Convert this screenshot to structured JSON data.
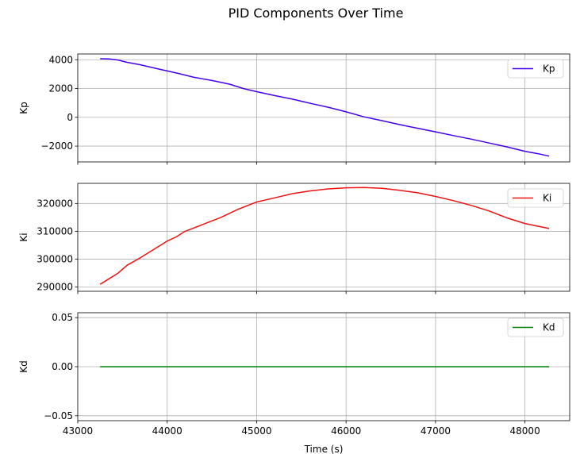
{
  "figure": {
    "title": "PID Components Over Time"
  },
  "chart_data": [
    {
      "type": "line",
      "xlabel": "",
      "ylabel": "Kp",
      "xlim": [
        43000,
        48500
      ],
      "ylim": [
        -3100,
        4400
      ],
      "yticks": [
        -2000,
        0,
        2000,
        4000
      ],
      "ytick_labels": [
        "−2000",
        "0",
        "2000",
        "4000"
      ],
      "xticks": [
        43000,
        44000,
        45000,
        46000,
        47000,
        48000
      ],
      "xtick_labels": [],
      "grid": true,
      "legend": "upper right",
      "series": [
        {
          "name": "Kp",
          "color": "#4400ee",
          "x": [
            43250,
            43350,
            43450,
            43550,
            43700,
            43900,
            44100,
            44300,
            44500,
            44700,
            44850,
            45000,
            45200,
            45400,
            45600,
            45800,
            46000,
            46200,
            46400,
            46600,
            46800,
            47000,
            47200,
            47400,
            47600,
            47800,
            48000,
            48150,
            48270
          ],
          "y": [
            4070,
            4060,
            3980,
            3820,
            3650,
            3360,
            3080,
            2780,
            2560,
            2300,
            2000,
            1780,
            1510,
            1260,
            970,
            700,
            380,
            30,
            -230,
            -510,
            -760,
            -1010,
            -1270,
            -1520,
            -1790,
            -2060,
            -2360,
            -2530,
            -2700
          ]
        }
      ]
    },
    {
      "type": "line",
      "xlabel": "",
      "ylabel": "Ki",
      "xlim": [
        43000,
        48500
      ],
      "ylim": [
        288500,
        327200
      ],
      "yticks": [
        290000,
        300000,
        310000,
        320000
      ],
      "ytick_labels": [
        "290000",
        "300000",
        "310000",
        "320000"
      ],
      "xticks": [
        43000,
        44000,
        45000,
        46000,
        47000,
        48000
      ],
      "xtick_labels": [],
      "grid": true,
      "legend": "upper right",
      "series": [
        {
          "name": "Ki",
          "color": "#ee1111",
          "x": [
            43250,
            43350,
            43450,
            43550,
            43700,
            43850,
            44000,
            44100,
            44200,
            44400,
            44600,
            44800,
            45000,
            45200,
            45400,
            45600,
            45800,
            46000,
            46200,
            46400,
            46600,
            46800,
            47000,
            47200,
            47400,
            47600,
            47800,
            48000,
            48150,
            48270
          ],
          "y": [
            291000,
            293000,
            295000,
            297800,
            300500,
            303500,
            306500,
            308000,
            310000,
            312500,
            315000,
            318000,
            320500,
            322000,
            323500,
            324500,
            325200,
            325600,
            325700,
            325400,
            324700,
            323800,
            322500,
            321000,
            319300,
            317300,
            314800,
            312800,
            311800,
            311000
          ]
        }
      ]
    },
    {
      "type": "line",
      "xlabel": "Time (s)",
      "ylabel": "Kd",
      "xlim": [
        43000,
        48500
      ],
      "ylim": [
        -0.055,
        0.055
      ],
      "yticks": [
        -0.05,
        0.0,
        0.05
      ],
      "ytick_labels": [
        "−0.05",
        "0.00",
        "0.05"
      ],
      "xticks": [
        43000,
        44000,
        45000,
        46000,
        47000,
        48000
      ],
      "xtick_labels": [
        "43000",
        "44000",
        "45000",
        "46000",
        "47000",
        "48000"
      ],
      "grid": true,
      "legend": "upper right",
      "series": [
        {
          "name": "Kd",
          "color": "#008000",
          "x": [
            43250,
            48270
          ],
          "y": [
            0,
            0
          ]
        }
      ]
    }
  ]
}
